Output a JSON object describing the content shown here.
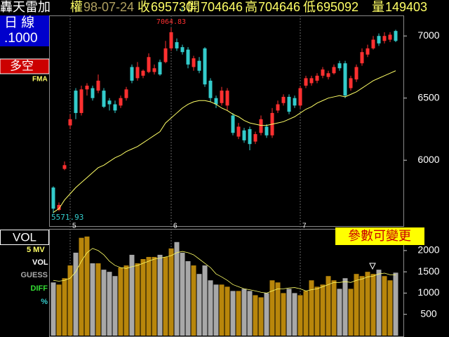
{
  "header": {
    "name": "轟天雷加",
    "kind": "權",
    "date": "98-07-24",
    "close_label": "收",
    "close": "695730",
    "arrow": "↓",
    "open_label": "開",
    "open": "704646",
    "high_label": "高",
    "high": "704646",
    "low_label": "低",
    "low": "695092",
    "vol_label": "量",
    "volume": "149403"
  },
  "sidebar": {
    "period": "日 線",
    "unit": ".1000",
    "mode": "多空"
  },
  "button": "參數可變更",
  "chart_data": [
    {
      "type": "candlestick",
      "categories": [
        null,
        null,
        null,
        "5",
        null,
        null,
        null,
        null,
        null,
        null,
        null,
        null,
        null,
        null,
        null,
        null,
        null,
        null,
        null,
        null,
        null,
        "6",
        null,
        null,
        null,
        null,
        null,
        null,
        null,
        null,
        null,
        null,
        null,
        null,
        null,
        null,
        null,
        null,
        null,
        null,
        null,
        null,
        null,
        null,
        "7",
        null,
        null,
        null,
        null,
        null,
        null,
        null,
        null,
        null,
        null,
        null,
        null,
        null,
        null,
        null,
        null,
        null
      ],
      "open": [
        5780,
        5600,
        5930,
        6280,
        6560,
        6380,
        6570,
        6580,
        6560,
        6560,
        6480,
        6450,
        6440,
        6500,
        6750,
        6660,
        6680,
        6710,
        6710,
        6790,
        6790,
        6900,
        6950,
        6910,
        6890,
        6750,
        6800,
        6900,
        6640,
        6500,
        6460,
        6440,
        6360,
        6190,
        6240,
        6250,
        6150,
        6220,
        6270,
        6200,
        6400,
        6460,
        6510,
        6500,
        6440,
        6600,
        6620,
        6640,
        6680,
        6670,
        6700,
        6780,
        6780,
        6580,
        6650,
        6780,
        6850,
        6900,
        7000,
        6960,
        6970,
        7040
      ],
      "high": [
        5790,
        5660,
        5990,
        6370,
        6580,
        6600,
        6620,
        6600,
        6690,
        6580,
        6500,
        6480,
        6520,
        6590,
        6770,
        6790,
        6730,
        6860,
        6770,
        6810,
        6960,
        7064.83,
        6980,
        6930,
        6910,
        6840,
        6830,
        6910,
        6660,
        6520,
        6590,
        6580,
        6380,
        6300,
        6260,
        6270,
        6230,
        6360,
        6290,
        6420,
        6480,
        6530,
        6530,
        6520,
        6600,
        6680,
        6680,
        6700,
        6750,
        6720,
        6770,
        6800,
        6800,
        6680,
        6770,
        6900,
        6930,
        7000,
        7020,
        7030,
        7030,
        7050
      ],
      "low": [
        5571.93,
        5590,
        5920,
        6250,
        6330,
        6360,
        6520,
        6480,
        6540,
        6420,
        6400,
        6380,
        6420,
        6480,
        6620,
        6640,
        6660,
        6700,
        6690,
        6680,
        6780,
        6880,
        6880,
        6850,
        6740,
        6720,
        6700,
        6590,
        6470,
        6420,
        6440,
        6400,
        6200,
        6170,
        6140,
        6080,
        6130,
        6200,
        6180,
        6180,
        6380,
        6440,
        6370,
        6420,
        6420,
        6580,
        6600,
        6620,
        6660,
        6650,
        6690,
        6720,
        6500,
        6560,
        6630,
        6760,
        6830,
        6890,
        6920,
        6940,
        6950,
        6950
      ],
      "close": [
        5610,
        5640,
        5960,
        6330,
        6380,
        6570,
        6600,
        6500,
        6640,
        6430,
        6450,
        6400,
        6500,
        6570,
        6640,
        6750,
        6720,
        6830,
        6740,
        6690,
        6900,
        7030,
        6900,
        6870,
        6770,
        6820,
        6720,
        6610,
        6500,
        6450,
        6560,
        6560,
        6220,
        6270,
        6160,
        6130,
        6210,
        6330,
        6200,
        6380,
        6450,
        6510,
        6390,
        6440,
        6580,
        6660,
        6660,
        6680,
        6730,
        6700,
        6750,
        6740,
        6520,
        6660,
        6750,
        6870,
        6900,
        6970,
        6940,
        7000,
        7010,
        6960
      ],
      "ma": {
        "name": "FMA",
        "color": "#ffff66",
        "values": [
          5580,
          5610,
          5680,
          5730,
          5780,
          5820,
          5860,
          5900,
          5940,
          5960,
          5990,
          6020,
          6040,
          6070,
          6090,
          6110,
          6140,
          6170,
          6200,
          6230,
          6300,
          6340,
          6380,
          6420,
          6450,
          6470,
          6480,
          6480,
          6470,
          6450,
          6420,
          6400,
          6370,
          6350,
          6320,
          6300,
          6290,
          6280,
          6280,
          6290,
          6300,
          6310,
          6330,
          6350,
          6380,
          6410,
          6430,
          6460,
          6480,
          6500,
          6510,
          6520,
          6510,
          6530,
          6550,
          6580,
          6610,
          6640,
          6660,
          6680,
          6700,
          6720
        ]
      },
      "up_color": "#ff3030",
      "down_color": "#33cccc",
      "ylim": [
        5470,
        7165
      ],
      "yticks": [
        6000,
        6500,
        7000
      ],
      "grid": true
    },
    {
      "type": "bar",
      "title": "VOL",
      "series": [
        {
          "name": "VOL",
          "up_color": "#b8860b",
          "down_color": "#a8a8a8",
          "values": [
            1250,
            1200,
            1350,
            1650,
            1950,
            2300,
            2330,
            1700,
            1700,
            1550,
            1500,
            1400,
            1600,
            1650,
            1900,
            1700,
            1800,
            1850,
            1850,
            1900,
            1850,
            2050,
            2200,
            1950,
            1750,
            1650,
            1450,
            1650,
            1300,
            1200,
            1200,
            1150,
            1050,
            1050,
            1100,
            1050,
            950,
            900,
            1000,
            1300,
            1250,
            1000,
            1100,
            1000,
            950,
            1050,
            1300,
            1150,
            1200,
            1400,
            1300,
            1100,
            1350,
            1100,
            1450,
            1400,
            1500,
            1450,
            1550,
            1400,
            1300,
            1480
          ]
        },
        {
          "name": "5 MV",
          "color": "#ffff66",
          "values": [
            1300,
            1280,
            1300,
            1350,
            1500,
            1750,
            1950,
            2050,
            2000,
            1900,
            1750,
            1650,
            1600,
            1580,
            1620,
            1650,
            1700,
            1750,
            1800,
            1820,
            1850,
            1880,
            1950,
            1980,
            1950,
            1900,
            1800,
            1700,
            1600,
            1450,
            1380,
            1300,
            1200,
            1150,
            1100,
            1080,
            1050,
            1020,
            1000,
            1050,
            1100,
            1100,
            1120,
            1130,
            1100,
            1050,
            1080,
            1100,
            1150,
            1200,
            1250,
            1250,
            1270,
            1250,
            1300,
            1330,
            1380,
            1400,
            1450,
            1470,
            1430,
            1430
          ]
        }
      ],
      "extra_labels": [
        {
          "text": "GUESS",
          "color": "#aaaaaa"
        },
        {
          "text": "DIFF",
          "color": "#33dd33"
        },
        {
          "text": "%",
          "color": "#33cccc"
        }
      ],
      "ylim": [
        0,
        2510
      ],
      "yticks": [
        500,
        1000,
        1500,
        2000
      ]
    }
  ]
}
